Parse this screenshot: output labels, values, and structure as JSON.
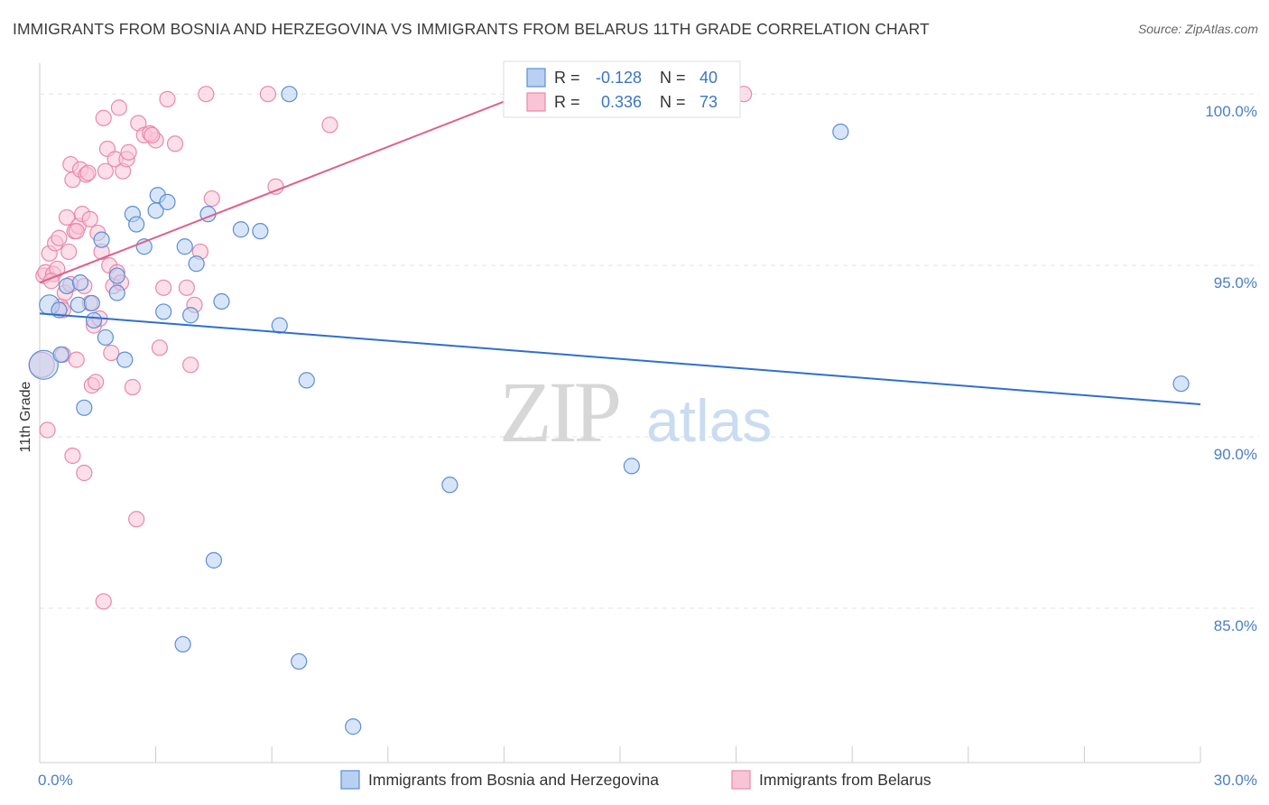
{
  "title": "IMMIGRANTS FROM BOSNIA AND HERZEGOVINA VS IMMIGRANTS FROM BELARUS 11TH GRADE CORRELATION CHART",
  "source": "Source: ZipAtlas.com",
  "watermark": {
    "zip": "ZIP",
    "atlas": "atlas"
  },
  "colors": {
    "blue_fill": "#b8d0f2",
    "blue_stroke": "#5b8ed6",
    "blue_line": "#2f6fcf",
    "pink_fill": "#f9c4d6",
    "pink_stroke": "#e989aa",
    "pink_line": "#e0608c",
    "tick_text": "#4a7fc7",
    "grid": "#e3e3e3"
  },
  "chart_data": {
    "type": "scatter",
    "xlabel": "",
    "ylabel": "11th Grade",
    "xlim": [
      0,
      30
    ],
    "ylim": [
      80.5,
      100.9
    ],
    "x_ticks": [
      {
        "value": 0,
        "label": "0.0%"
      },
      {
        "value": 30,
        "label": "30.0%"
      }
    ],
    "y_ticks": [
      {
        "value": 85,
        "label": "85.0%"
      },
      {
        "value": 90,
        "label": "90.0%"
      },
      {
        "value": 95,
        "label": "95.0%"
      },
      {
        "value": 100,
        "label": "100.0%"
      }
    ],
    "legend_stats": [
      {
        "r_label": "R =",
        "r_value": "-0.128",
        "n_label": "N =",
        "n_value": "40"
      },
      {
        "r_label": "R =",
        "r_value": "0.336",
        "n_label": "N =",
        "n_value": "73"
      }
    ],
    "series": [
      {
        "name": "Immigrants from Bosnia and Herzegovina",
        "color": "blue",
        "trend": {
          "x": [
            0.0,
            30.0
          ],
          "y": [
            93.6,
            90.95
          ]
        },
        "points": [
          {
            "x": 0.1,
            "y": 92.1,
            "s": 16
          },
          {
            "x": 0.25,
            "y": 93.85,
            "s": 11
          },
          {
            "x": 0.5,
            "y": 93.7
          },
          {
            "x": 0.7,
            "y": 94.4
          },
          {
            "x": 0.55,
            "y": 92.4
          },
          {
            "x": 1.0,
            "y": 93.85
          },
          {
            "x": 1.05,
            "y": 94.5
          },
          {
            "x": 1.4,
            "y": 93.4
          },
          {
            "x": 1.6,
            "y": 95.75
          },
          {
            "x": 1.7,
            "y": 92.9
          },
          {
            "x": 2.0,
            "y": 94.7
          },
          {
            "x": 2.0,
            "y": 94.2
          },
          {
            "x": 2.2,
            "y": 92.25
          },
          {
            "x": 1.15,
            "y": 90.85
          },
          {
            "x": 2.4,
            "y": 96.5
          },
          {
            "x": 2.5,
            "y": 96.2
          },
          {
            "x": 2.7,
            "y": 95.55
          },
          {
            "x": 3.0,
            "y": 96.6
          },
          {
            "x": 3.05,
            "y": 97.05
          },
          {
            "x": 3.3,
            "y": 96.85
          },
          {
            "x": 3.2,
            "y": 93.65
          },
          {
            "x": 3.75,
            "y": 95.55
          },
          {
            "x": 3.9,
            "y": 93.55
          },
          {
            "x": 4.05,
            "y": 95.05
          },
          {
            "x": 4.35,
            "y": 96.5
          },
          {
            "x": 4.7,
            "y": 93.95
          },
          {
            "x": 5.2,
            "y": 96.05
          },
          {
            "x": 5.7,
            "y": 96.0
          },
          {
            "x": 6.45,
            "y": 100.0
          },
          {
            "x": 6.2,
            "y": 93.25
          },
          {
            "x": 6.9,
            "y": 91.65
          },
          {
            "x": 4.5,
            "y": 86.4
          },
          {
            "x": 3.7,
            "y": 83.95
          },
          {
            "x": 6.7,
            "y": 83.45
          },
          {
            "x": 8.1,
            "y": 81.55
          },
          {
            "x": 10.6,
            "y": 88.6
          },
          {
            "x": 15.3,
            "y": 89.15
          },
          {
            "x": 20.7,
            "y": 98.9
          },
          {
            "x": 29.5,
            "y": 91.55
          },
          {
            "x": 1.35,
            "y": 93.9
          }
        ]
      },
      {
        "name": "Immigrants from Belarus",
        "color": "pink",
        "trend": {
          "x": [
            0.0,
            12.5
          ],
          "y": [
            94.5,
            100.0
          ]
        },
        "points": [
          {
            "x": 0.05,
            "y": 92.1,
            "s": 14
          },
          {
            "x": 0.1,
            "y": 94.7
          },
          {
            "x": 0.15,
            "y": 94.8
          },
          {
            "x": 0.2,
            "y": 90.2
          },
          {
            "x": 0.25,
            "y": 95.35
          },
          {
            "x": 0.35,
            "y": 94.75
          },
          {
            "x": 0.4,
            "y": 95.65
          },
          {
            "x": 0.45,
            "y": 94.9
          },
          {
            "x": 0.5,
            "y": 95.8
          },
          {
            "x": 0.55,
            "y": 93.8
          },
          {
            "x": 0.6,
            "y": 92.4
          },
          {
            "x": 0.65,
            "y": 94.2
          },
          {
            "x": 0.7,
            "y": 96.4
          },
          {
            "x": 0.75,
            "y": 95.4
          },
          {
            "x": 0.8,
            "y": 94.45
          },
          {
            "x": 0.85,
            "y": 89.45
          },
          {
            "x": 0.8,
            "y": 97.95
          },
          {
            "x": 0.85,
            "y": 97.5
          },
          {
            "x": 0.9,
            "y": 96.0
          },
          {
            "x": 0.95,
            "y": 92.25
          },
          {
            "x": 1.0,
            "y": 96.15
          },
          {
            "x": 1.05,
            "y": 97.8
          },
          {
            "x": 1.1,
            "y": 96.5
          },
          {
            "x": 1.15,
            "y": 94.4
          },
          {
            "x": 1.2,
            "y": 97.65
          },
          {
            "x": 1.15,
            "y": 88.95
          },
          {
            "x": 1.3,
            "y": 96.35
          },
          {
            "x": 1.25,
            "y": 97.7
          },
          {
            "x": 1.4,
            "y": 93.25
          },
          {
            "x": 1.35,
            "y": 91.5
          },
          {
            "x": 1.5,
            "y": 95.95
          },
          {
            "x": 1.55,
            "y": 93.45
          },
          {
            "x": 1.45,
            "y": 91.6
          },
          {
            "x": 1.6,
            "y": 95.4
          },
          {
            "x": 1.7,
            "y": 97.75
          },
          {
            "x": 1.75,
            "y": 98.4
          },
          {
            "x": 1.65,
            "y": 99.3
          },
          {
            "x": 1.8,
            "y": 95.0
          },
          {
            "x": 1.85,
            "y": 92.45
          },
          {
            "x": 1.9,
            "y": 94.4
          },
          {
            "x": 2.0,
            "y": 94.8
          },
          {
            "x": 1.95,
            "y": 98.1
          },
          {
            "x": 2.05,
            "y": 99.6
          },
          {
            "x": 2.1,
            "y": 94.5
          },
          {
            "x": 2.15,
            "y": 97.75
          },
          {
            "x": 2.25,
            "y": 98.1
          },
          {
            "x": 2.3,
            "y": 98.3
          },
          {
            "x": 2.4,
            "y": 91.45
          },
          {
            "x": 2.55,
            "y": 99.15
          },
          {
            "x": 2.7,
            "y": 98.8
          },
          {
            "x": 2.5,
            "y": 87.6
          },
          {
            "x": 3.0,
            "y": 98.65
          },
          {
            "x": 3.1,
            "y": 92.6
          },
          {
            "x": 3.2,
            "y": 94.35
          },
          {
            "x": 3.3,
            "y": 99.85
          },
          {
            "x": 3.5,
            "y": 98.55
          },
          {
            "x": 3.8,
            "y": 94.35
          },
          {
            "x": 3.9,
            "y": 92.1
          },
          {
            "x": 4.0,
            "y": 93.85
          },
          {
            "x": 4.15,
            "y": 95.4
          },
          {
            "x": 4.3,
            "y": 100.0
          },
          {
            "x": 4.45,
            "y": 96.95
          },
          {
            "x": 5.9,
            "y": 100.0
          },
          {
            "x": 6.1,
            "y": 97.3
          },
          {
            "x": 7.5,
            "y": 99.1
          },
          {
            "x": 1.65,
            "y": 85.2
          },
          {
            "x": 18.2,
            "y": 100.0
          },
          {
            "x": 0.3,
            "y": 94.55
          },
          {
            "x": 2.85,
            "y": 98.85
          },
          {
            "x": 1.3,
            "y": 93.9
          },
          {
            "x": 0.6,
            "y": 93.7
          },
          {
            "x": 0.95,
            "y": 96.0
          },
          {
            "x": 2.9,
            "y": 98.8
          }
        ]
      }
    ]
  },
  "legend": {
    "bottom": [
      {
        "label": "Immigrants from Bosnia and Herzegovina",
        "color": "blue"
      },
      {
        "label": "Immigrants from Belarus",
        "color": "pink"
      }
    ]
  }
}
